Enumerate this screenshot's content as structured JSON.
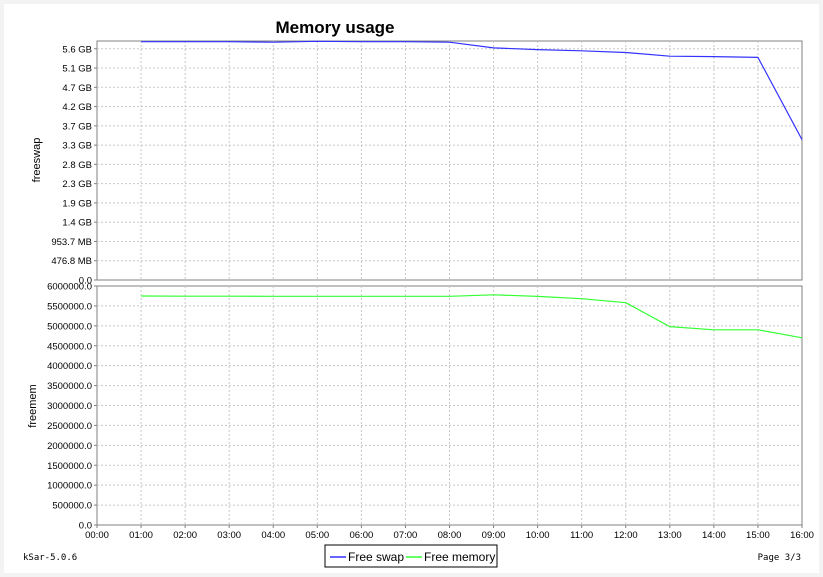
{
  "title": "Memory usage",
  "footer": {
    "left": "kSar-5.0.6",
    "right": "Page 3/3"
  },
  "colors": {
    "swap": "#3333ff",
    "mem": "#33ff33"
  },
  "chart_data": [
    {
      "type": "line",
      "ylabel": "freeswap",
      "x": [
        "01:00",
        "02:00",
        "03:00",
        "04:00",
        "05:00",
        "06:00",
        "07:00",
        "08:00",
        "09:00",
        "10:00",
        "11:00",
        "12:00",
        "13:00",
        "14:00",
        "15:00",
        "16:00"
      ],
      "xticks": [
        "00:00",
        "01:00",
        "02:00",
        "03:00",
        "04:00",
        "05:00",
        "06:00",
        "07:00",
        "08:00",
        "09:00",
        "10:00",
        "11:00",
        "12:00",
        "13:00",
        "14:00",
        "15:00",
        "16:00"
      ],
      "yticks": [
        "0.0",
        "476.8 MB",
        "953.7 MB",
        "1.4 GB",
        "1.9 GB",
        "2.3 GB",
        "2.8 GB",
        "3.3 GB",
        "3.7 GB",
        "4.2 GB",
        "4.7 GB",
        "5.1 GB",
        "5.6 GB"
      ],
      "yunit": "GB",
      "ylim": [
        0,
        6.0
      ],
      "grid": true,
      "series": [
        {
          "name": "Free swap",
          "values": [
            5.77,
            5.77,
            5.77,
            5.76,
            5.78,
            5.77,
            5.77,
            5.76,
            5.62,
            5.58,
            5.55,
            5.51,
            5.42,
            5.41,
            5.39,
            3.4
          ]
        }
      ]
    },
    {
      "type": "line",
      "ylabel": "freemem",
      "x": [
        "01:00",
        "02:00",
        "03:00",
        "04:00",
        "05:00",
        "06:00",
        "07:00",
        "08:00",
        "09:00",
        "10:00",
        "11:00",
        "12:00",
        "13:00",
        "14:00",
        "15:00",
        "16:00"
      ],
      "yticks": [
        "0.0",
        "500000.0",
        "1000000.0",
        "1500000.0",
        "2000000.0",
        "2500000.0",
        "3000000.0",
        "3500000.0",
        "4000000.0",
        "4500000.0",
        "5000000.0",
        "5500000.0",
        "6000000.0"
      ],
      "ylim": [
        0,
        6000000
      ],
      "grid": true,
      "series": [
        {
          "name": "Free memory",
          "values": [
            5750000,
            5745000,
            5745000,
            5742000,
            5742000,
            5742000,
            5742000,
            5742000,
            5780000,
            5740000,
            5680000,
            5580000,
            4980000,
            4900000,
            4900000,
            4700000
          ]
        }
      ]
    }
  ],
  "legend": [
    {
      "label": "Free swap",
      "color": "#3333ff"
    },
    {
      "label": "Free memory",
      "color": "#33ff33"
    }
  ]
}
